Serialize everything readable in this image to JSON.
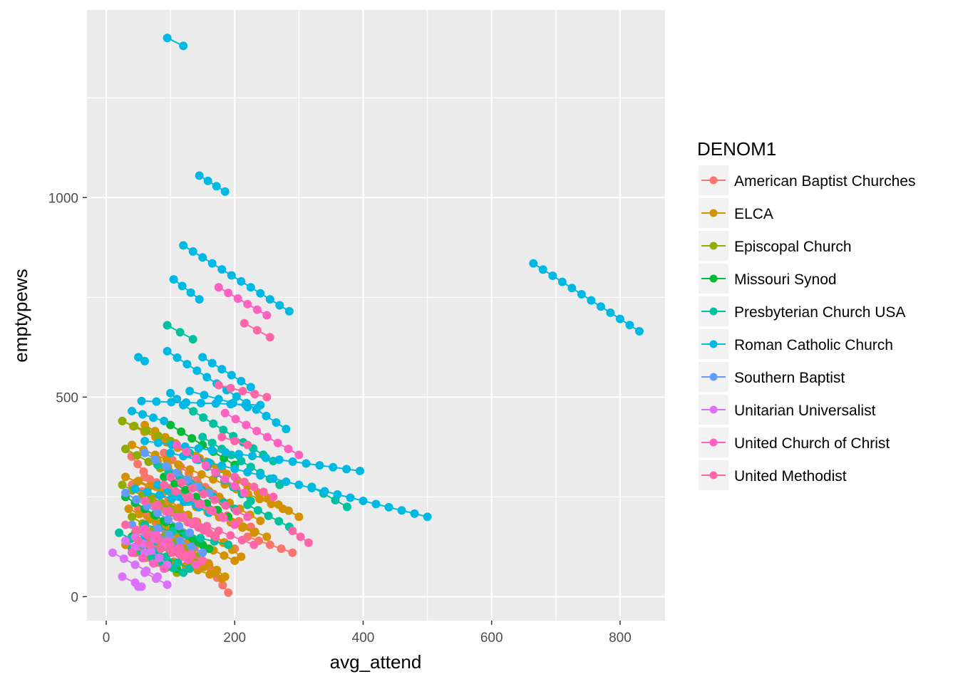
{
  "chart_data": {
    "type": "scatter",
    "title": "",
    "xlabel": "avg_attend",
    "ylabel": "emptypews",
    "xlim": [
      -30,
      870
    ],
    "ylim": [
      -60,
      1470
    ],
    "x_ticks": [
      0,
      200,
      400,
      600,
      800
    ],
    "y_ticks": [
      0,
      500,
      1000
    ],
    "grid": true,
    "legend_position": "right",
    "legend_title": "DENOM1",
    "series": [
      {
        "name": "American Baptist Churches",
        "color": "#F8766D",
        "segments": [
          [
            [
              120,
              160
            ],
            [
              190,
              10
            ]
          ],
          [
            [
              30,
              370
            ],
            [
              115,
              200
            ]
          ],
          [
            [
              40,
              280
            ],
            [
              200,
              120
            ]
          ],
          [
            [
              60,
              300
            ],
            [
              225,
              175
            ]
          ],
          [
            [
              220,
              150
            ],
            [
              290,
              110
            ]
          ],
          [
            [
              90,
              360
            ],
            [
              180,
              240
            ]
          ],
          [
            [
              50,
              220
            ],
            [
              160,
              80
            ]
          ]
        ]
      },
      {
        "name": "ELCA",
        "color": "#D39200",
        "segments": [
          [
            [
              25,
              440
            ],
            [
              180,
              320
            ]
          ],
          [
            [
              60,
              430
            ],
            [
              300,
              200
            ]
          ],
          [
            [
              40,
              380
            ],
            [
              275,
              220
            ]
          ],
          [
            [
              30,
              300
            ],
            [
              250,
              150
            ]
          ],
          [
            [
              35,
              220
            ],
            [
              200,
              90
            ]
          ],
          [
            [
              45,
              160
            ],
            [
              170,
              60
            ]
          ],
          [
            [
              30,
              130
            ],
            [
              180,
              45
            ]
          ],
          [
            [
              80,
              340
            ],
            [
              240,
              190
            ]
          ],
          [
            [
              100,
              240
            ],
            [
              210,
              100
            ]
          ],
          [
            [
              50,
              290
            ],
            [
              230,
              160
            ]
          ],
          [
            [
              70,
              200
            ],
            [
              185,
              50
            ]
          ]
        ]
      },
      {
        "name": "Episcopal Church",
        "color": "#93AA00",
        "segments": [
          [
            [
              25,
              280
            ],
            [
              150,
              170
            ]
          ],
          [
            [
              30,
              370
            ],
            [
              120,
              290
            ]
          ],
          [
            [
              25,
              440
            ],
            [
              100,
              390
            ]
          ],
          [
            [
              40,
              200
            ],
            [
              140,
              100
            ]
          ],
          [
            [
              45,
              110
            ],
            [
              110,
              60
            ]
          ],
          [
            [
              70,
              250
            ],
            [
              160,
              160
            ]
          ]
        ]
      },
      {
        "name": "Missouri Synod",
        "color": "#00BA38",
        "segments": [
          [
            [
              30,
              250
            ],
            [
              150,
              130
            ]
          ],
          [
            [
              40,
              150
            ],
            [
              110,
              70
            ]
          ],
          [
            [
              60,
              220
            ],
            [
              160,
              120
            ]
          ],
          [
            [
              100,
              430
            ],
            [
              200,
              330
            ]
          ],
          [
            [
              90,
              300
            ],
            [
              190,
              200
            ]
          ]
        ]
      },
      {
        "name": "Presbyterian Church USA",
        "color": "#00C19F",
        "segments": [
          [
            [
              95,
              680
            ],
            [
              135,
              645
            ]
          ],
          [
            [
              120,
              480
            ],
            [
              260,
              340
            ]
          ],
          [
            [
              150,
              400
            ],
            [
              270,
              280
            ]
          ],
          [
            [
              320,
              275
            ],
            [
              375,
              225
            ]
          ],
          [
            [
              220,
              230
            ],
            [
              285,
              175
            ]
          ],
          [
            [
              80,
              330
            ],
            [
              200,
              220
            ]
          ],
          [
            [
              20,
              160
            ],
            [
              130,
              70
            ]
          ],
          [
            [
              40,
              120
            ],
            [
              120,
              60
            ]
          ],
          [
            [
              60,
              180
            ],
            [
              190,
              130
            ]
          ],
          [
            [
              130,
              360
            ],
            [
              225,
              240
            ]
          ]
        ]
      },
      {
        "name": "Roman Catholic Church",
        "color": "#00B9E3",
        "segments": [
          [
            [
              95,
              1400
            ],
            [
              120,
              1380
            ]
          ],
          [
            [
              145,
              1055
            ],
            [
              185,
              1015
            ]
          ],
          [
            [
              120,
              880
            ],
            [
              285,
              715
            ]
          ],
          [
            [
              105,
              795
            ],
            [
              145,
              745
            ]
          ],
          [
            [
              95,
              615
            ],
            [
              280,
              420
            ]
          ],
          [
            [
              50,
              600
            ],
            [
              60,
              590
            ]
          ],
          [
            [
              150,
              600
            ],
            [
              225,
              525
            ]
          ],
          [
            [
              55,
              490
            ],
            [
              240,
              480
            ]
          ],
          [
            [
              130,
              515
            ],
            [
              220,
              475
            ]
          ],
          [
            [
              60,
              390
            ],
            [
              395,
              315
            ]
          ],
          [
            [
              100,
              360
            ],
            [
              500,
              200
            ]
          ],
          [
            [
              40,
              465
            ],
            [
              90,
              440
            ]
          ],
          [
            [
              665,
              835
            ],
            [
              830,
              665
            ]
          ],
          [
            [
              100,
              510
            ],
            [
              120,
              480
            ]
          ],
          [
            [
              45,
              270
            ],
            [
              140,
              230
            ]
          ],
          [
            [
              80,
              280
            ],
            [
              160,
              210
            ]
          ],
          [
            [
              60,
              150
            ],
            [
              110,
              120
            ]
          ]
        ]
      },
      {
        "name": "Southern Baptist",
        "color": "#619CFF",
        "segments": [
          [
            [
              30,
              260
            ],
            [
              130,
              160
            ]
          ],
          [
            [
              60,
              360
            ],
            [
              160,
              260
            ]
          ],
          [
            [
              80,
              170
            ],
            [
              150,
              110
            ]
          ],
          [
            [
              40,
              180
            ],
            [
              100,
              130
            ]
          ]
        ]
      },
      {
        "name": "Unitarian Universalist",
        "color": "#DB72FB",
        "segments": [
          [
            [
              25,
              50
            ],
            [
              45,
              35
            ]
          ],
          [
            [
              50,
              25
            ],
            [
              55,
              25
            ]
          ],
          [
            [
              10,
              110
            ],
            [
              80,
              50
            ]
          ],
          [
            [
              60,
              160
            ],
            [
              90,
              130
            ]
          ],
          [
            [
              45,
              150
            ],
            [
              95,
              80
            ]
          ],
          [
            [
              60,
              60
            ],
            [
              95,
              30
            ]
          ],
          [
            [
              30,
              140
            ],
            [
              60,
              110
            ]
          ]
        ]
      },
      {
        "name": "United Church of Christ",
        "color": "#FF61C3",
        "segments": [
          [
            [
              175,
              775
            ],
            [
              250,
              705
            ]
          ],
          [
            [
              185,
              460
            ],
            [
              300,
              355
            ]
          ],
          [
            [
              110,
              380
            ],
            [
              215,
              260
            ]
          ],
          [
            [
              60,
              170
            ],
            [
              150,
              90
            ]
          ],
          [
            [
              100,
              120
            ],
            [
              140,
              80
            ]
          ],
          [
            [
              40,
              110
            ],
            [
              90,
              70
            ]
          ],
          [
            [
              130,
              250
            ],
            [
              200,
              180
            ]
          ]
        ]
      },
      {
        "name": "United Methodist",
        "color": "#FF66A8",
        "segments": [
          [
            [
              215,
              685
            ],
            [
              255,
              650
            ]
          ],
          [
            [
              175,
              530
            ],
            [
              250,
              500
            ]
          ],
          [
            [
              180,
              400
            ],
            [
              220,
              380
            ]
          ],
          [
            [
              290,
              165
            ],
            [
              315,
              135
            ]
          ],
          [
            [
              200,
              300
            ],
            [
              260,
              250
            ]
          ],
          [
            [
              100,
              300
            ],
            [
              220,
              200
            ]
          ],
          [
            [
              120,
              200
            ],
            [
              230,
              130
            ]
          ],
          [
            [
              60,
              240
            ],
            [
              160,
              160
            ]
          ],
          [
            [
              30,
              180
            ],
            [
              150,
              90
            ]
          ],
          [
            [
              90,
              280
            ],
            [
              180,
              200
            ]
          ],
          [
            [
              50,
              140
            ],
            [
              120,
              100
            ]
          ],
          [
            [
              80,
              230
            ],
            [
              170,
              150
            ]
          ]
        ]
      }
    ]
  }
}
